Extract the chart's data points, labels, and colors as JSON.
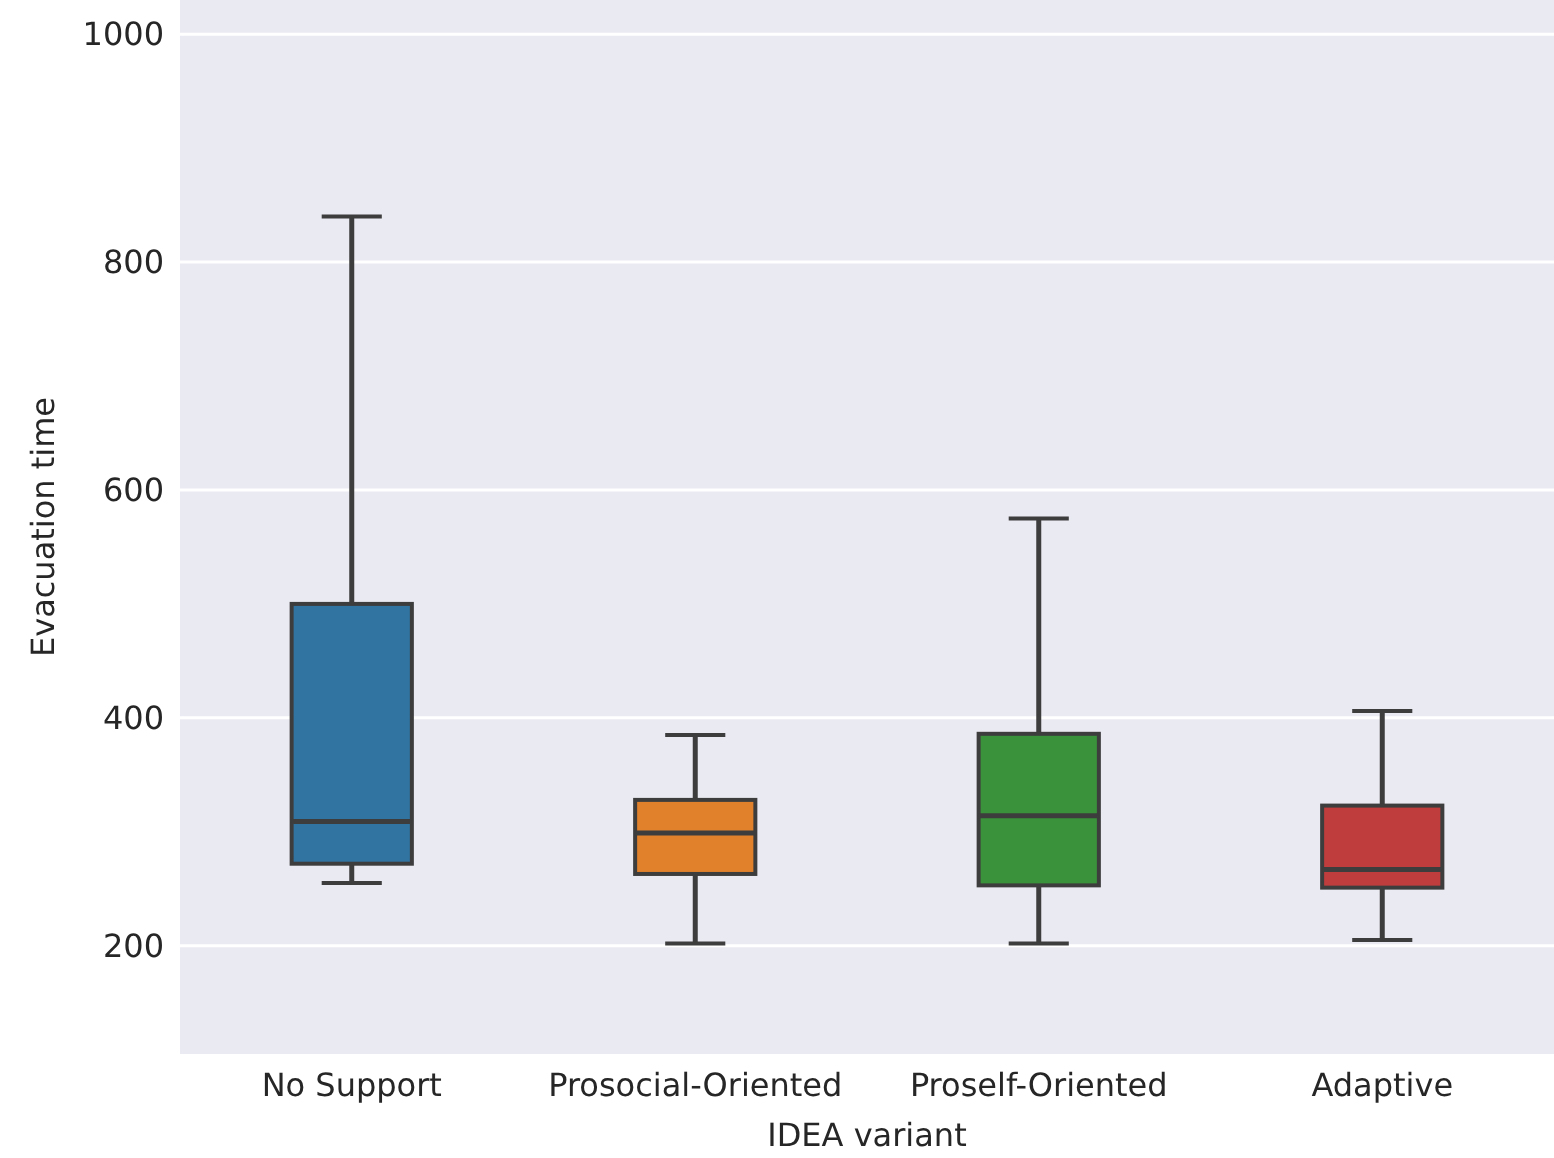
{
  "chart_data": {
    "type": "box",
    "xlabel": "IDEA variant",
    "ylabel": "Evacuation time",
    "categories": [
      "No Support",
      "Prosocial-Oriented",
      "Proself-Oriented",
      "Adaptive"
    ],
    "colors": [
      "#3274a1",
      "#e1812c",
      "#3a923a",
      "#c03d3e"
    ],
    "boxes": [
      {
        "low": 255,
        "q1": 272,
        "median": 309,
        "q3": 500,
        "high": 840
      },
      {
        "low": 202,
        "q1": 263,
        "median": 299,
        "q3": 328,
        "high": 385
      },
      {
        "low": 202,
        "q1": 253,
        "median": 314,
        "q3": 386,
        "high": 575
      },
      {
        "low": 205,
        "q1": 251,
        "median": 267,
        "q3": 323,
        "high": 406
      }
    ],
    "ylim": [
      105,
      1030
    ],
    "yticks": [
      200,
      400,
      600,
      800,
      1000
    ],
    "grid": "y"
  }
}
